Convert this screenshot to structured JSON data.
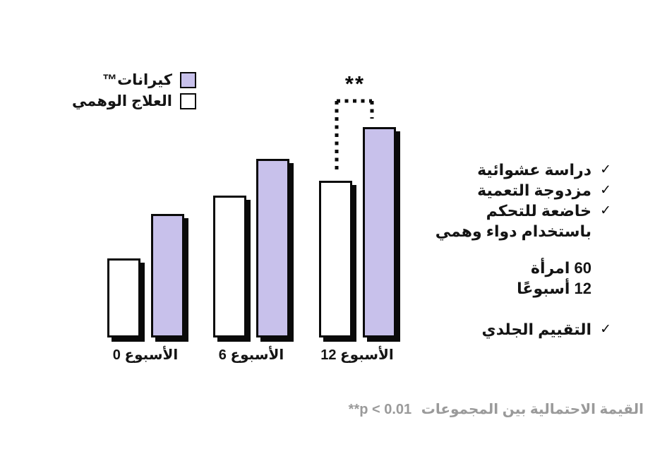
{
  "page": {
    "background": "#FFFFFF"
  },
  "chart_data": {
    "type": "bar",
    "direction": "rtl",
    "categories": [
      "الأسبوع 0",
      "الأسبوع 6",
      "الأسبوع 12"
    ],
    "series": [
      {
        "name": "كيرانات™",
        "color": "#C8C1EB",
        "values": [
          175,
          253,
          298
        ]
      },
      {
        "name": "العلاج الوهمي",
        "color": "#FFFFFF",
        "values": [
          112,
          201,
          222
        ]
      }
    ],
    "values_unit": "relative bar height in px (no y-axis shown in figure)",
    "ylim": [
      0,
      320
    ],
    "grid": false,
    "legend_position": "top-left",
    "significance": {
      "stars": "**",
      "category": "الأسبوع 12",
      "meaning": "**p < 0.01"
    }
  },
  "info_panel": {
    "bullets": [
      {
        "label": "دراسة عشوائية",
        "checked": true
      },
      {
        "label": "مزدوجة التعمية",
        "checked": true
      },
      {
        "label": "خاضعة للتحكم",
        "checked": true
      },
      {
        "label": "باستخدام دواء وهمي",
        "checked": false
      }
    ],
    "cohort": {
      "line1": "60 امرأة",
      "line2": "12 أسبوعًا"
    },
    "assessment": {
      "label": "التقييم الجلدي",
      "checked": true
    }
  },
  "footnote": {
    "arabic": "القيمة الاحتمالية بين المجموعات",
    "stat": "**p < 0.01"
  },
  "icons": {
    "check": "✓"
  },
  "colors": {
    "bar_purple": "#C8C1EB",
    "bar_white": "#FFFFFF",
    "outline": "#0A0A0A",
    "text": "#141414",
    "footnote_gray": "#9A9A9A"
  }
}
